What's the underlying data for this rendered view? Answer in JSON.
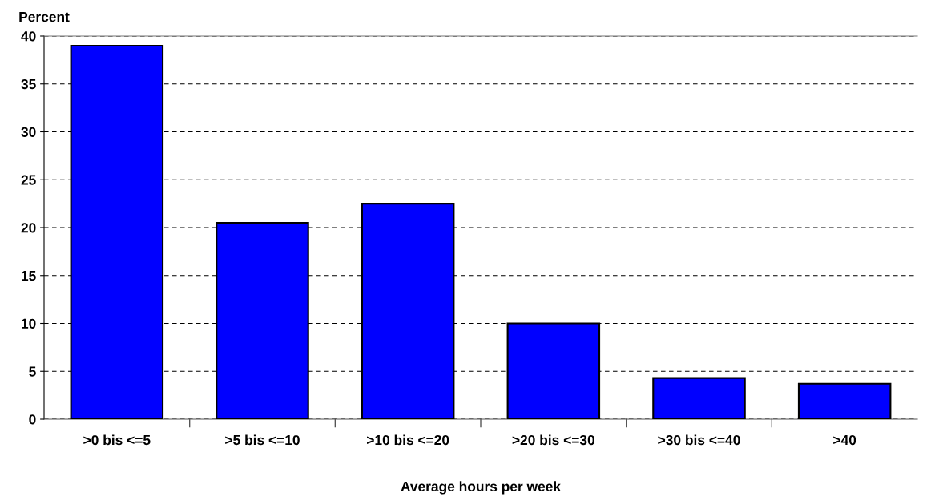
{
  "chart_data": {
    "type": "bar",
    "ylabel": "Percent",
    "xlabel": "Average hours per week",
    "categories": [
      ">0 bis <=5",
      ">5 bis <=10",
      ">10 bis <=20",
      ">20 bis <=30",
      ">30 bis <=40",
      ">40"
    ],
    "values": [
      39,
      20.5,
      22.5,
      10,
      4.3,
      3.7
    ],
    "color": "#0000ff",
    "ylim": [
      0,
      40
    ],
    "yticks": [
      0,
      5,
      10,
      15,
      20,
      25,
      30,
      35,
      40
    ],
    "grid": "y",
    "line_style": "dashed"
  }
}
